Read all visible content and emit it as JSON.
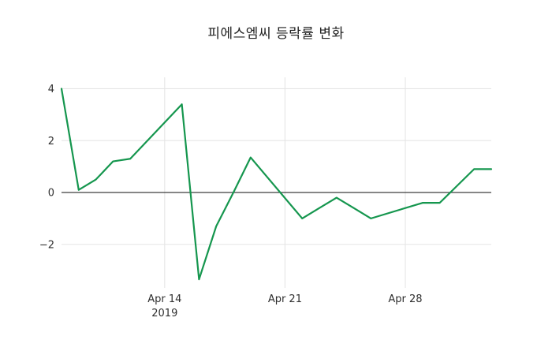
{
  "colors": {
    "background": "#ffffff",
    "line": "#15964e",
    "grid": "#e5e5e5",
    "zero_line": "#3d3d3d",
    "title_text": "#1f1f1f",
    "tick_text": "#2e2e2e"
  },
  "chart_data": {
    "type": "line",
    "title": "피에스엠씨 등락률 변화",
    "xlabel": "",
    "ylabel": "",
    "legend": false,
    "grid": true,
    "x": [
      "2019-04-08",
      "2019-04-09",
      "2019-04-10",
      "2019-04-11",
      "2019-04-12",
      "2019-04-15",
      "2019-04-16",
      "2019-04-17",
      "2019-04-18",
      "2019-04-19",
      "2019-04-22",
      "2019-04-23",
      "2019-04-24",
      "2019-04-25",
      "2019-04-26",
      "2019-04-29",
      "2019-04-30",
      "2019-05-01",
      "2019-05-02",
      "2019-05-03"
    ],
    "values": [
      4.0,
      0.1,
      0.5,
      1.2,
      1.3,
      3.4,
      -3.35,
      -1.3,
      0.0,
      1.35,
      -1.0,
      -0.6,
      -0.2,
      -0.6,
      -1.0,
      -0.4,
      -0.4,
      0.25,
      0.9,
      0.9
    ],
    "xlim": [
      "2019-04-08",
      "2019-05-03"
    ],
    "ylim": [
      -3.68,
      4.44
    ],
    "y_ticks": [
      {
        "value": 4,
        "label": "4"
      },
      {
        "value": 2,
        "label": "2"
      },
      {
        "value": 0,
        "label": "0"
      },
      {
        "value": -2,
        "label": "−2"
      }
    ],
    "x_ticks": [
      {
        "date": "2019-04-14",
        "label": "Apr 14",
        "year_label": "2019"
      },
      {
        "date": "2019-04-21",
        "label": "Apr 21"
      },
      {
        "date": "2019-04-28",
        "label": "Apr 28"
      }
    ]
  }
}
